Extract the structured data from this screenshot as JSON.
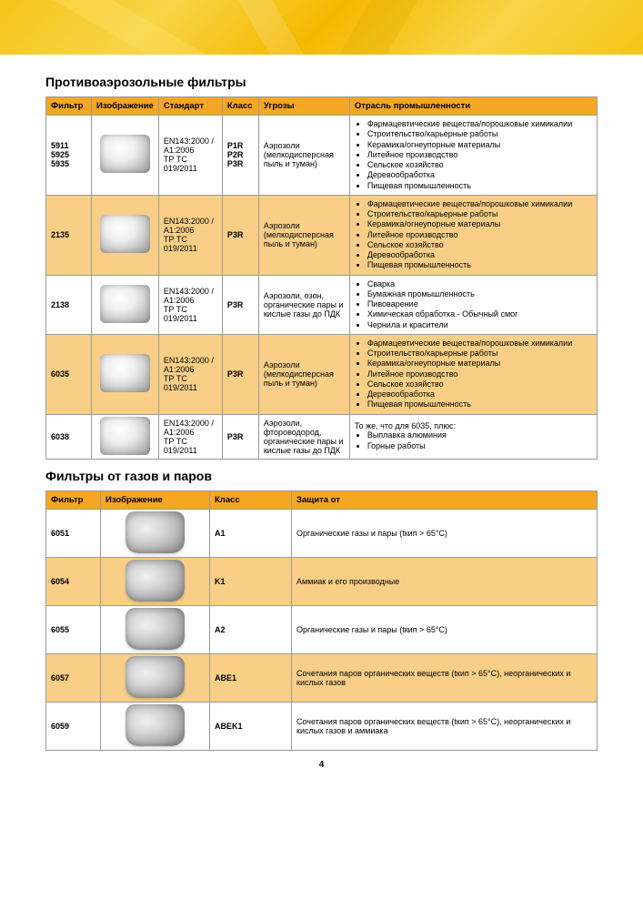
{
  "page_number": "4",
  "colors": {
    "header_bg": "#f5a623",
    "row_highlight": "#f9cf87",
    "border": "#999999"
  },
  "section1": {
    "title": "Противоаэрозольные фильтры",
    "headers": [
      "Фильтр",
      "Изображение",
      "Стандарт",
      "Класс",
      "Угрозы",
      "Отрасль промышленности"
    ],
    "rows": [
      {
        "filter": "5911\n5925\n5935",
        "standard": "EN143:2000 / A1:2006\nТР ТС 019/2011",
        "klass": "P1R\nP2R\nP3R",
        "threats": "Аэрозоли (мелкодисперсная пыль и туман)",
        "industry": [
          "Фармацевтические вещества/порошковые химикалии",
          "Строительство/карьерные работы",
          "Керамика/огнеупорные материалы",
          "Литейное производство",
          "Сельское хозяйство",
          "Деревообработка",
          "Пищевая промышленность"
        ],
        "highlight": false
      },
      {
        "filter": "2135",
        "standard": "EN143:2000 / A1:2006\nТР ТС 019/2011",
        "klass": "P3R",
        "threats": "Аэрозоли (мелкодисперсная пыль и туман)",
        "industry": [
          "Фармацевтические вещества/порошковые химикалии",
          "Строительство/карьерные работы",
          "Керамика/огнеупорные материалы",
          "Литейное производство",
          "Сельское хозяйство",
          "Деревообработка",
          "Пищевая промышленность"
        ],
        "highlight": true
      },
      {
        "filter": "2138",
        "standard": "EN143:2000 / A1:2006\nТР ТС 019/2011",
        "klass": "P3R",
        "threats": "Аэрозоли, озон, органические пары и кислые газы до ПДК",
        "industry": [
          "Сварка",
          "Бумажная промышленность",
          "Пивоварение",
          "Химическая обработка - Обычный смог",
          "Чернила и красители"
        ],
        "highlight": false
      },
      {
        "filter": "6035",
        "standard": "EN143:2000 / A1:2006\nТР ТС 019/2011",
        "klass": "P3R",
        "threats": "Аэрозоли (мелкодисперсная пыль и туман)",
        "industry": [
          "Фармацевтические вещества/порошковые химикалии",
          "Строительство/карьерные работы",
          "Керамика/огнеупорные материалы",
          "Литейное производство",
          "Сельское хозяйство",
          "Деревообработка",
          "Пищевая промышленность"
        ],
        "highlight": true
      },
      {
        "filter": "6038",
        "standard": "EN143:2000 / A1:2006\nТР ТС 019/2011",
        "klass": "P3R",
        "threats": "Аэрозоли, фтороводород, органические пары и кислые газы до ПДК",
        "industry_prefix": "То же, что для 6035, плюс:",
        "industry": [
          "Выплавка алюминия",
          "Горные работы"
        ],
        "highlight": false
      }
    ]
  },
  "section2": {
    "title": "Фильтры от газов и паров",
    "headers": [
      "Фильтр",
      "Изображение",
      "Класс",
      "Защита от"
    ],
    "rows": [
      {
        "filter": "6051",
        "klass": "A1",
        "protection": "Органические газы и пары (tкип > 65°C)",
        "highlight": false
      },
      {
        "filter": "6054",
        "klass": "K1",
        "protection": "Аммиак и его производные",
        "highlight": true
      },
      {
        "filter": "6055",
        "klass": "A2",
        "protection": "Органические газы и пары (tкип > 65°C)",
        "highlight": false
      },
      {
        "filter": "6057",
        "klass": "ABE1",
        "protection": "Сочетания паров органических веществ (tкип > 65°C), неорганических и кислых газов",
        "highlight": true
      },
      {
        "filter": "6059",
        "klass": "ABEK1",
        "protection": "Сочетания паров органических веществ (tкип > 65°C), неорганических и кислых газов и аммиака",
        "highlight": false
      }
    ]
  }
}
